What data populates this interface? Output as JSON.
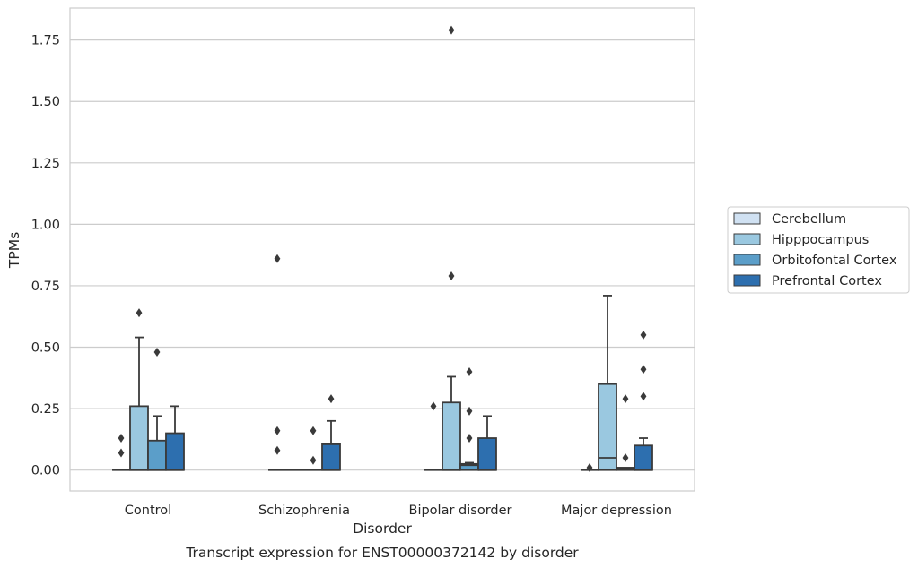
{
  "chart_data": {
    "type": "box",
    "title": "",
    "caption": "Transcript expression for ENST00000372142 by disorder",
    "xlabel": "Disorder",
    "ylabel": "TPMs",
    "ylim": [
      -0.085,
      1.88
    ],
    "yticks": [
      "0.00",
      "0.25",
      "0.50",
      "0.75",
      "1.00",
      "1.25",
      "1.50",
      "1.75"
    ],
    "grid": true,
    "legend_position": "right",
    "categories": [
      "Control",
      "Schizophrenia",
      "Bipolar disorder",
      "Major depression"
    ],
    "series": [
      {
        "name": "Cerebellum",
        "color": "#d0e1f2",
        "boxes": [
          {
            "q1": 0.0,
            "median": 0.0,
            "q3": 0.0,
            "whisker_low": 0.0,
            "whisker_high": 0.0,
            "outliers": [
              0.07,
              0.13
            ]
          },
          {
            "q1": 0.0,
            "median": 0.0,
            "q3": 0.0,
            "whisker_low": 0.0,
            "whisker_high": 0.0,
            "outliers": [
              0.08,
              0.16,
              0.86
            ]
          },
          {
            "q1": 0.0,
            "median": 0.0,
            "q3": 0.0,
            "whisker_low": 0.0,
            "whisker_high": 0.0,
            "outliers": [
              0.26
            ]
          },
          {
            "q1": 0.0,
            "median": 0.0,
            "q3": 0.0,
            "whisker_low": 0.0,
            "whisker_high": 0.0,
            "outliers": [
              0.01
            ]
          }
        ]
      },
      {
        "name": "Hipppocampus",
        "color": "#9ac8e0",
        "boxes": [
          {
            "q1": 0.0,
            "median": 0.0,
            "q3": 0.26,
            "whisker_low": 0.0,
            "whisker_high": 0.54,
            "outliers": [
              0.64
            ]
          },
          {
            "q1": 0.0,
            "median": 0.0,
            "q3": 0.0,
            "whisker_low": 0.0,
            "whisker_high": 0.0,
            "outliers": []
          },
          {
            "q1": 0.0,
            "median": 0.0,
            "q3": 0.275,
            "whisker_low": 0.0,
            "whisker_high": 0.38,
            "outliers": [
              0.79,
              1.79
            ]
          },
          {
            "q1": 0.0,
            "median": 0.05,
            "q3": 0.35,
            "whisker_low": 0.0,
            "whisker_high": 0.71,
            "outliers": []
          }
        ]
      },
      {
        "name": "Orbitofontal Cortex",
        "color": "#5b9ec9",
        "boxes": [
          {
            "q1": 0.0,
            "median": 0.0,
            "q3": 0.12,
            "whisker_low": 0.0,
            "whisker_high": 0.22,
            "outliers": [
              0.48
            ]
          },
          {
            "q1": 0.0,
            "median": 0.0,
            "q3": 0.0,
            "whisker_low": 0.0,
            "whisker_high": 0.0,
            "outliers": [
              0.04,
              0.16
            ]
          },
          {
            "q1": 0.0,
            "median": 0.02,
            "q3": 0.025,
            "whisker_low": 0.0,
            "whisker_high": 0.03,
            "outliers": [
              0.13,
              0.24,
              0.4
            ]
          },
          {
            "q1": 0.0,
            "median": 0.005,
            "q3": 0.01,
            "whisker_low": 0.0,
            "whisker_high": 0.01,
            "outliers": [
              0.05,
              0.29
            ]
          }
        ]
      },
      {
        "name": "Prefrontal Cortex",
        "color": "#2d6faf",
        "boxes": [
          {
            "q1": 0.0,
            "median": 0.0,
            "q3": 0.15,
            "whisker_low": 0.0,
            "whisker_high": 0.26,
            "outliers": []
          },
          {
            "q1": 0.0,
            "median": 0.0,
            "q3": 0.105,
            "whisker_low": 0.0,
            "whisker_high": 0.2,
            "outliers": [
              0.29
            ]
          },
          {
            "q1": 0.0,
            "median": 0.0,
            "q3": 0.13,
            "whisker_low": 0.0,
            "whisker_high": 0.22,
            "outliers": []
          },
          {
            "q1": 0.0,
            "median": 0.0,
            "q3": 0.1,
            "whisker_low": 0.0,
            "whisker_high": 0.13,
            "outliers": [
              0.3,
              0.41,
              0.55
            ]
          }
        ]
      }
    ]
  }
}
